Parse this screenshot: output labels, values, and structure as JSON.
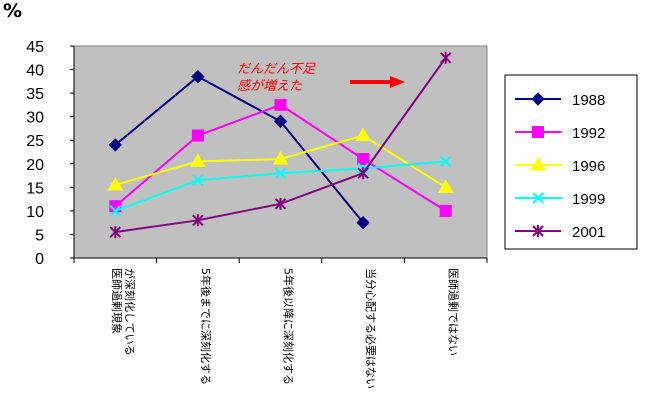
{
  "chart_data": {
    "type": "line",
    "unit_label": "%",
    "categories": [
      [
        "医師過剰現象",
        "が深刻化している"
      ],
      [
        "5年後までに深刻化する"
      ],
      [
        "5年後以降に深刻化する"
      ],
      [
        "当分心配する必要はない"
      ],
      [
        "医師過剰ではない"
      ]
    ],
    "ylim": [
      0,
      45
    ],
    "yticks": [
      "0",
      "5",
      "10",
      "15",
      "20",
      "25",
      "30",
      "35",
      "40",
      "45"
    ],
    "grid": false,
    "legend_position": "right",
    "series": [
      {
        "name": "1988",
        "color": "#000080",
        "marker": "diamond",
        "values": [
          24,
          38.5,
          29,
          7.5,
          null
        ]
      },
      {
        "name": "1992",
        "color": "#ff00ff",
        "marker": "square",
        "values": [
          11,
          26,
          32.5,
          21,
          10
        ]
      },
      {
        "name": "1996",
        "color": "#ffff00",
        "marker": "triangle",
        "values": [
          15.5,
          20.5,
          21,
          26,
          15
        ]
      },
      {
        "name": "1999",
        "color": "#00ffff",
        "marker": "x",
        "values": [
          10,
          16.5,
          18,
          19,
          20.5
        ]
      },
      {
        "name": "2001",
        "color": "#800080",
        "marker": "star",
        "values": [
          5.5,
          8,
          11.5,
          18,
          42.5
        ]
      }
    ],
    "annotation": {
      "lines": [
        "だんだん不足",
        "感が増えた"
      ],
      "color": "#ff0000"
    }
  }
}
